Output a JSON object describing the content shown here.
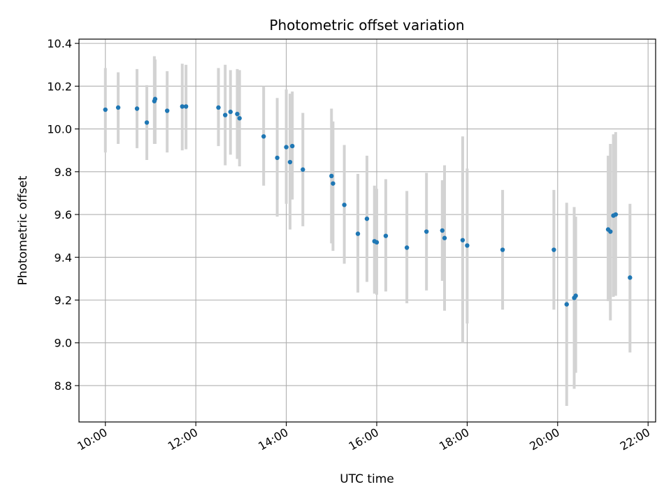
{
  "chart_data": {
    "type": "scatter",
    "title": "Photometric offset variation",
    "xlabel": "UTC time",
    "ylabel": "Photometric offset",
    "grid": true,
    "xlim": [
      "09:25",
      "22:10"
    ],
    "ylim": [
      8.63,
      10.42
    ],
    "x_ticks": [
      "10:00",
      "12:00",
      "14:00",
      "16:00",
      "18:00",
      "20:00",
      "22:00"
    ],
    "y_ticks": [
      "8.8",
      "9.0",
      "9.2",
      "9.4",
      "9.6",
      "9.8",
      "10.0",
      "10.2",
      "10.4"
    ],
    "point_color": "#1f77b4",
    "errorbar_color": "#d3d3d3",
    "series": [
      {
        "x": [
          "10:00",
          "10:17",
          "10:42",
          "10:55",
          "11:05",
          "11:06",
          "11:22",
          "11:42",
          "11:47",
          "12:30",
          "12:39",
          "12:46",
          "12:55",
          "12:58",
          "13:30",
          "13:48",
          "14:00",
          "14:05",
          "14:08",
          "14:22",
          "15:00",
          "15:02",
          "15:17",
          "15:35",
          "15:47",
          "15:57",
          "16:00",
          "16:12",
          "16:40",
          "17:06",
          "17:27",
          "17:30",
          "17:54",
          "18:00",
          "18:47",
          "19:55",
          "20:12",
          "20:22",
          "20:24",
          "21:07",
          "21:10",
          "21:14",
          "21:17",
          "21:36"
        ],
        "y": [
          10.09,
          10.1,
          10.095,
          10.03,
          10.13,
          10.14,
          10.085,
          10.105,
          10.105,
          10.1,
          10.065,
          10.08,
          10.07,
          10.05,
          9.965,
          9.865,
          9.915,
          9.845,
          9.92,
          9.81,
          9.78,
          9.745,
          9.645,
          9.51,
          9.58,
          9.475,
          9.47,
          9.5,
          9.445,
          9.52,
          9.525,
          9.49,
          9.48,
          9.455,
          9.435,
          9.435,
          9.18,
          9.21,
          9.22,
          9.53,
          9.52,
          9.595,
          9.6,
          9.305
        ],
        "y_lower": [
          9.89,
          9.93,
          9.91,
          9.855,
          9.93,
          9.93,
          9.89,
          9.9,
          9.905,
          9.92,
          9.83,
          9.88,
          9.86,
          9.825,
          9.735,
          9.59,
          9.65,
          9.53,
          9.67,
          9.545,
          9.465,
          9.43,
          9.37,
          9.235,
          9.285,
          9.23,
          9.225,
          9.24,
          9.185,
          9.245,
          9.29,
          9.15,
          9.0,
          9.09,
          9.155,
          9.155,
          8.705,
          8.785,
          8.86,
          9.195,
          9.105,
          9.215,
          9.22,
          8.955
        ],
        "y_upper": [
          10.285,
          10.265,
          10.28,
          10.205,
          10.34,
          10.325,
          10.27,
          10.305,
          10.3,
          10.285,
          10.3,
          10.275,
          10.28,
          10.275,
          10.2,
          10.145,
          10.185,
          10.165,
          10.175,
          10.075,
          10.095,
          10.035,
          9.925,
          9.79,
          9.875,
          9.735,
          9.72,
          9.765,
          9.71,
          9.795,
          9.76,
          9.83,
          9.965,
          9.815,
          9.715,
          9.715,
          9.655,
          9.635,
          9.59,
          9.875,
          9.93,
          9.975,
          9.985,
          9.65
        ]
      }
    ]
  }
}
